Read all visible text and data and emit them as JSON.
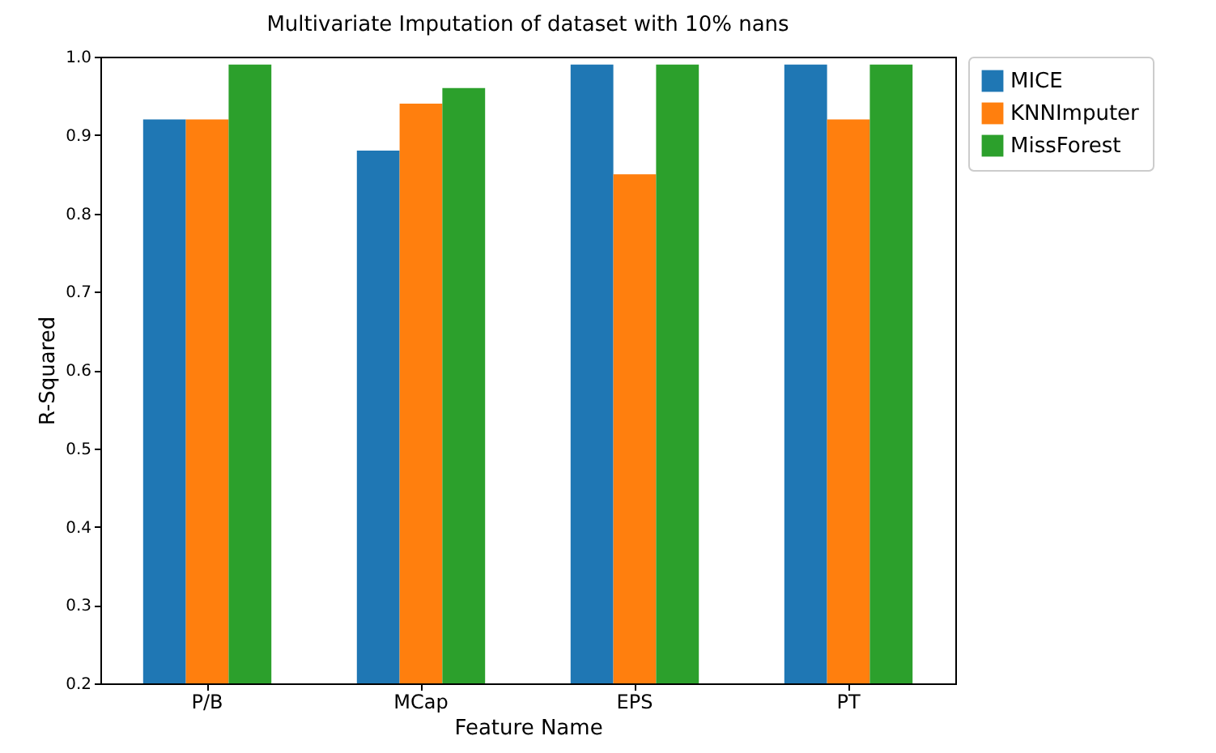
{
  "chart_data": {
    "type": "bar",
    "title": "Multivariate Imputation of dataset with 10% nans",
    "xlabel": "Feature Name",
    "ylabel": "R-Squared",
    "categories": [
      "P/B",
      "MCap",
      "EPS",
      "PT"
    ],
    "series": [
      {
        "name": "MICE",
        "color": "#1f77b4",
        "values": [
          0.92,
          0.88,
          0.99,
          0.99
        ]
      },
      {
        "name": "KNNImputer",
        "color": "#ff7f0e",
        "values": [
          0.92,
          0.94,
          0.85,
          0.92
        ]
      },
      {
        "name": "MissForest",
        "color": "#2ca02c",
        "values": [
          0.99,
          0.96,
          0.99,
          0.99
        ]
      }
    ],
    "ylim": [
      0.2,
      1.0
    ],
    "yticks": [
      0.2,
      0.3,
      0.4,
      0.5,
      0.6,
      0.7,
      0.8,
      0.9,
      {
        "value": 1.0,
        "label": "1.0"
      }
    ],
    "legend": "top right"
  }
}
